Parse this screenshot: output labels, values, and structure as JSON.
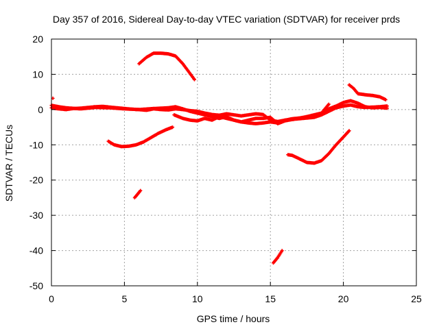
{
  "chart_data": {
    "type": "scatter",
    "title": "Day 357 of 2016, Sidereal Day-to-day VTEC variation (SDTVAR) for receiver prds",
    "xlabel": "GPS time / hours",
    "ylabel": "SDTVAR / TECUs",
    "xlim": [
      0,
      25
    ],
    "ylim": [
      -50,
      20
    ],
    "xticks": [
      0,
      5,
      10,
      15,
      20,
      25
    ],
    "yticks": [
      -50,
      -40,
      -30,
      -20,
      -10,
      0,
      10,
      20
    ],
    "xtick_labels": [
      "0",
      "5",
      "10",
      "15",
      "20",
      "25"
    ],
    "ytick_labels": [
      "-50",
      "-40",
      "-30",
      "-20",
      "-10",
      "0",
      "10",
      "20"
    ],
    "grid": true,
    "legend": "none",
    "marker": "plus",
    "color": "#ff0000",
    "series": [
      {
        "name": "track-a-near-zero",
        "x": [
          0.0,
          0.5,
          1.0,
          1.5,
          2.0,
          2.5,
          3.0,
          3.5,
          4.0,
          4.5,
          5.0,
          5.5,
          6.0,
          6.5,
          7.0,
          7.5,
          8.0,
          8.5,
          9.0,
          9.5,
          10.0,
          10.5,
          11.0,
          11.5,
          12.0,
          12.5,
          13.0,
          13.5,
          14.0,
          14.5,
          15.0,
          15.5,
          16.0,
          16.5,
          17.0,
          17.5,
          18.0,
          18.5,
          19.0,
          19.5,
          20.0,
          20.5,
          21.0,
          21.5,
          22.0,
          22.5,
          23.0
        ],
        "y": [
          0.5,
          0.2,
          0.0,
          0.3,
          0.4,
          0.6,
          0.8,
          0.9,
          0.7,
          0.5,
          0.3,
          0.1,
          0.0,
          -0.2,
          0.2,
          0.0,
          -0.1,
          0.2,
          0.0,
          -0.3,
          -0.5,
          -1.0,
          -1.4,
          -1.6,
          -1.2,
          -1.5,
          -1.8,
          -1.5,
          -1.2,
          -1.4,
          -3.0,
          -3.4,
          -3.0,
          -2.8,
          -2.6,
          -2.4,
          -2.2,
          -1.5,
          -0.5,
          0.5,
          1.0,
          1.3,
          0.8,
          0.6,
          0.7,
          0.8,
          1.0
        ]
      },
      {
        "name": "track-b-near-zero",
        "x": [
          0.0,
          0.5,
          1.0,
          2.0,
          3.0,
          4.0,
          5.0,
          6.0,
          7.0,
          8.0,
          8.5,
          9.0,
          9.5,
          10.0,
          10.5,
          11.0,
          11.5,
          12.0,
          12.5,
          13.0,
          13.5,
          14.0,
          14.5,
          15.0,
          15.5,
          16.0,
          16.5,
          17.0,
          17.5,
          18.0,
          18.5,
          19.0,
          19.5,
          20.0,
          20.5,
          21.0,
          21.5,
          22.0,
          22.5,
          23.0
        ],
        "y": [
          1.2,
          0.8,
          0.5,
          0.2,
          0.6,
          0.5,
          0.2,
          0.0,
          0.3,
          0.5,
          0.8,
          0.2,
          -0.5,
          -1.0,
          -1.5,
          -2.0,
          -2.5,
          -2.0,
          -3.0,
          -3.5,
          -3.0,
          -2.5,
          -2.5,
          -2.2,
          -4.0,
          -3.2,
          -2.8,
          -2.4,
          -2.2,
          -2.0,
          -1.2,
          0.2,
          1.0,
          2.0,
          2.5,
          1.8,
          0.8,
          0.5,
          0.6,
          0.4
        ]
      },
      {
        "name": "track-c-mid",
        "x": [
          8.4,
          9.0,
          9.5,
          10.0,
          10.5,
          11.0,
          11.5,
          12.0,
          12.5,
          13.0,
          13.5,
          14.0,
          14.5,
          15.0,
          15.5,
          16.0,
          16.5,
          17.0,
          17.5,
          18.0,
          18.5
        ],
        "y": [
          -1.5,
          -2.5,
          -3.0,
          -3.2,
          -2.5,
          -3.0,
          -2.0,
          -2.5,
          -3.0,
          -3.5,
          -3.8,
          -4.0,
          -3.8,
          -3.5,
          -3.8,
          -3.0,
          -2.6,
          -2.4,
          -2.0,
          -1.5,
          -1.0
        ]
      },
      {
        "name": "arc-upper",
        "x": [
          6.0,
          6.5,
          7.0,
          7.5,
          8.0,
          8.5,
          9.0,
          9.5,
          9.8
        ],
        "y": [
          13.0,
          14.8,
          16.0,
          16.0,
          15.8,
          15.2,
          13.0,
          10.2,
          8.5
        ]
      },
      {
        "name": "arc-lower-left",
        "x": [
          3.9,
          4.3,
          4.8,
          5.3,
          5.8,
          6.3,
          6.8,
          7.3,
          7.8,
          8.3
        ],
        "y": [
          -9.0,
          -10.0,
          -10.5,
          -10.4,
          -10.0,
          -9.2,
          -8.0,
          -6.8,
          -5.8,
          -5.0
        ]
      },
      {
        "name": "track-upper-right",
        "x": [
          20.4,
          20.7,
          21.0,
          21.5,
          22.0,
          22.5,
          22.9
        ],
        "y": [
          7.0,
          6.0,
          4.5,
          4.2,
          4.0,
          3.6,
          2.8
        ]
      },
      {
        "name": "arc-lower-right",
        "x": [
          16.2,
          16.5,
          17.0,
          17.5,
          18.0,
          18.5,
          19.0,
          19.5,
          20.0,
          20.4
        ],
        "y": [
          -12.8,
          -13.0,
          -14.0,
          -15.0,
          -15.2,
          -14.5,
          -12.5,
          -10.0,
          -7.8,
          -6.0
        ]
      },
      {
        "name": "segment-near-6h",
        "x": [
          5.7,
          5.9,
          6.1
        ],
        "y": [
          -25.0,
          -24.0,
          -23.0
        ]
      },
      {
        "name": "segment-near-15h",
        "x": [
          15.2,
          15.5,
          15.8
        ],
        "y": [
          -43.5,
          -42.0,
          -40.0
        ]
      },
      {
        "name": "spike-near-19h",
        "x": [
          18.6,
          18.8,
          19.0
        ],
        "y": [
          -0.5,
          0.5,
          1.5
        ]
      },
      {
        "name": "point-near-0h",
        "x": [
          0.1
        ],
        "y": [
          3.2
        ]
      }
    ]
  }
}
